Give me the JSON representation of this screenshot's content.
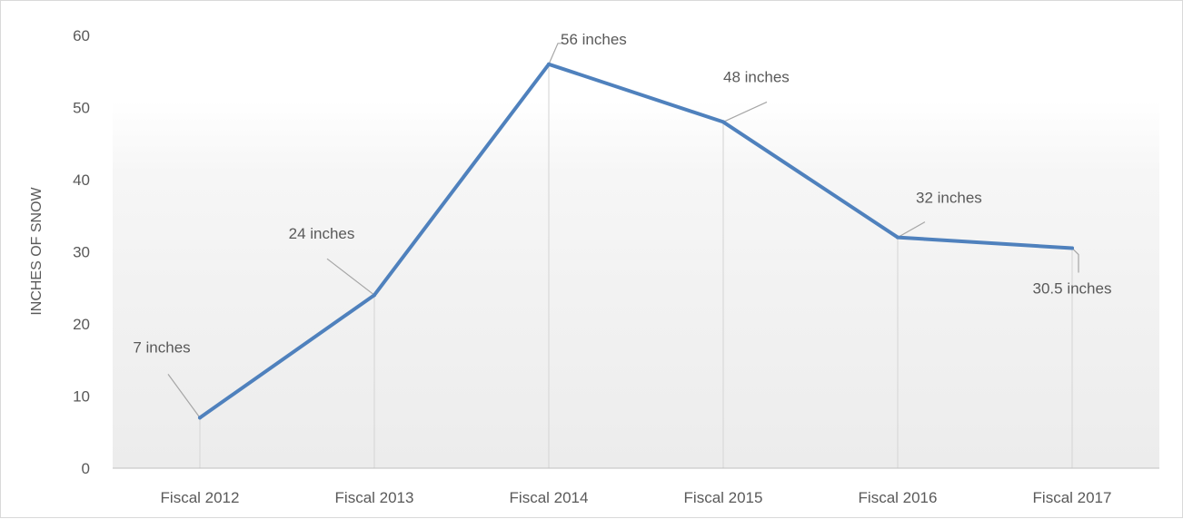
{
  "chart_data": {
    "type": "line",
    "title": "",
    "xlabel": "",
    "ylabel": "INCHES OF SNOW",
    "categories": [
      "Fiscal 2012",
      "Fiscal 2013",
      "Fiscal 2014",
      "Fiscal 2015",
      "Fiscal 2016",
      "Fiscal 2017"
    ],
    "series": [
      {
        "values": [
          7,
          24,
          56,
          48,
          32,
          30.5
        ]
      }
    ],
    "data_labels": [
      "7 inches",
      "24 inches",
      "56 inches",
      "48 inches",
      "32 inches",
      "30.5 inches"
    ],
    "ylim": [
      0,
      60
    ],
    "yticks": [
      0,
      10,
      20,
      30,
      40,
      50,
      60
    ],
    "grid": false,
    "drop_lines": true,
    "colors": {
      "line": "#4f81bd",
      "leader": "#a6a6a6",
      "drop_line": "#d9d9d9",
      "axis": "#bfbfbf",
      "text": "#595959"
    }
  }
}
